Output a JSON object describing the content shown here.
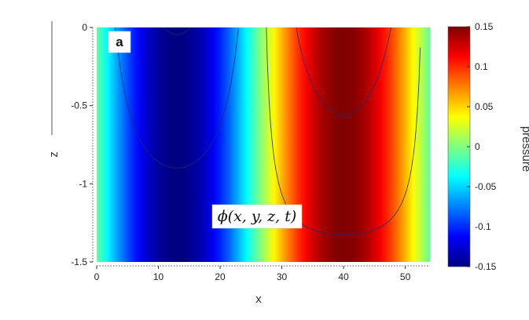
{
  "chart_data": {
    "type": "heatmap",
    "panel_label": "a",
    "annotation": "ϕ(x, y, z, t)",
    "xlabel": "x",
    "ylabel": "z",
    "colorbar_label": "pressure",
    "xlim": [
      0,
      54
    ],
    "ylim": [
      -1.5,
      0
    ],
    "x_ticks": [
      0,
      10,
      20,
      30,
      40,
      50
    ],
    "y_ticks": [
      0,
      -0.5,
      -1,
      -1.5
    ],
    "y_tick_labels": [
      "0",
      "-0.5",
      "-1",
      "-1.5"
    ],
    "clim": [
      -0.15,
      0.15
    ],
    "colorbar_ticks": [
      0.15,
      0.1,
      0.05,
      0,
      -0.05,
      -0.1,
      -0.15
    ],
    "colorbar_tick_labels": [
      "0.15",
      "0.1",
      "0.05",
      "0",
      "-0.05",
      "-0.1",
      "-0.15"
    ],
    "colormap": "jet",
    "field": {
      "form": "amplitude * cos(2*pi*(x - crest_x)/wavelength)",
      "amplitude": 0.15,
      "crest_x": 40,
      "wavelength": 54
    },
    "contour_levels": [
      -2.2,
      -1.9,
      -1.65,
      -1.4,
      -1.2,
      -1.0,
      -0.83,
      -0.67,
      -0.53,
      -0.4,
      -0.28,
      -0.17,
      -0.07,
      0.02,
      0.11,
      0.2,
      0.3,
      0.4,
      0.52,
      0.65,
      0.8,
      0.97,
      1.16,
      1.37,
      1.6,
      1.88
    ],
    "contour_color": "#1f2a6e"
  }
}
